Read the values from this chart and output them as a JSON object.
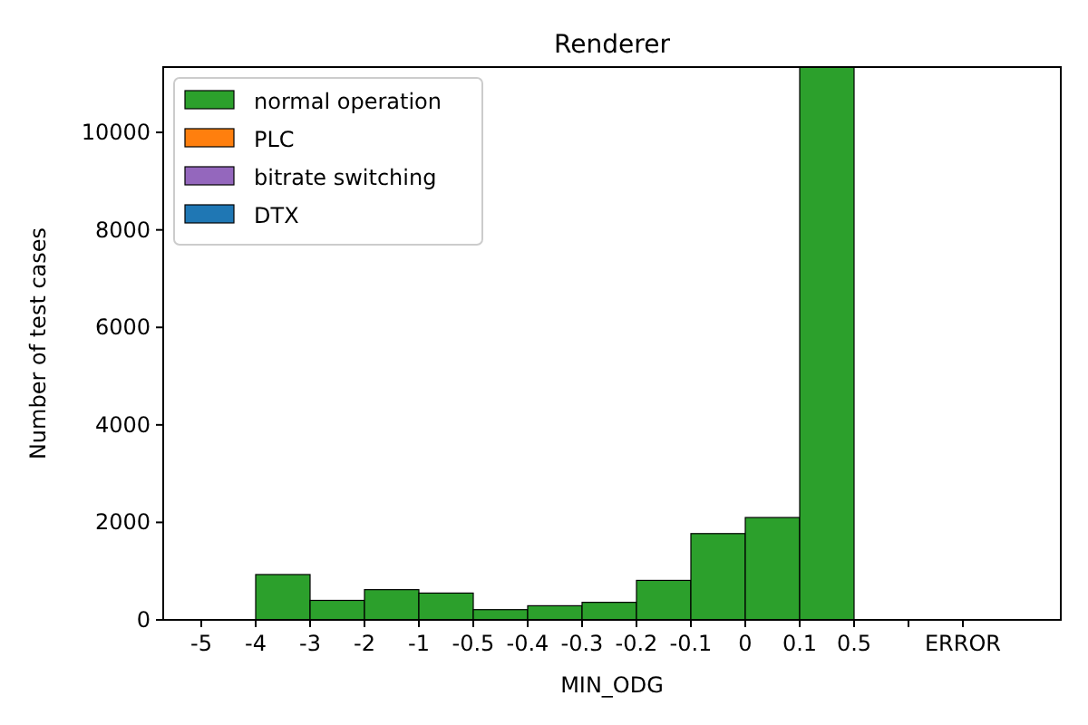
{
  "chart_data": {
    "type": "bar",
    "title": "Renderer",
    "xlabel": "MIN_ODG",
    "ylabel": "Number of test cases",
    "stacked": true,
    "legend": "top left",
    "grid": false,
    "categories": [
      "-5",
      "-4",
      "-3",
      "-2",
      "-1",
      "-0.5",
      "-0.4",
      "-0.3",
      "-0.2",
      "-0.1",
      "0",
      "0.1",
      "0.5",
      null,
      "ERROR"
    ],
    "series": [
      {
        "name": "normal operation",
        "color": "#2ca02c",
        "values": [
          0,
          930,
          400,
          620,
          550,
          210,
          290,
          360,
          810,
          1770,
          2100,
          11340,
          0,
          0,
          0
        ]
      },
      {
        "name": "PLC",
        "color": "#ff7f0e",
        "values": [
          0,
          0,
          0,
          0,
          0,
          0,
          0,
          0,
          0,
          0,
          0,
          0,
          0,
          0,
          0
        ]
      },
      {
        "name": "bitrate switching",
        "color": "#9467bd",
        "values": [
          0,
          0,
          0,
          0,
          0,
          0,
          0,
          0,
          0,
          0,
          0,
          0,
          0,
          0,
          0
        ]
      },
      {
        "name": "DTX",
        "color": "#1f77b4",
        "values": [
          0,
          0,
          0,
          0,
          0,
          0,
          0,
          0,
          0,
          0,
          0,
          0,
          0,
          0,
          0
        ]
      }
    ],
    "ylim": [
      0,
      11340
    ],
    "yticks": [
      0,
      2000,
      4000,
      6000,
      8000,
      10000
    ]
  }
}
